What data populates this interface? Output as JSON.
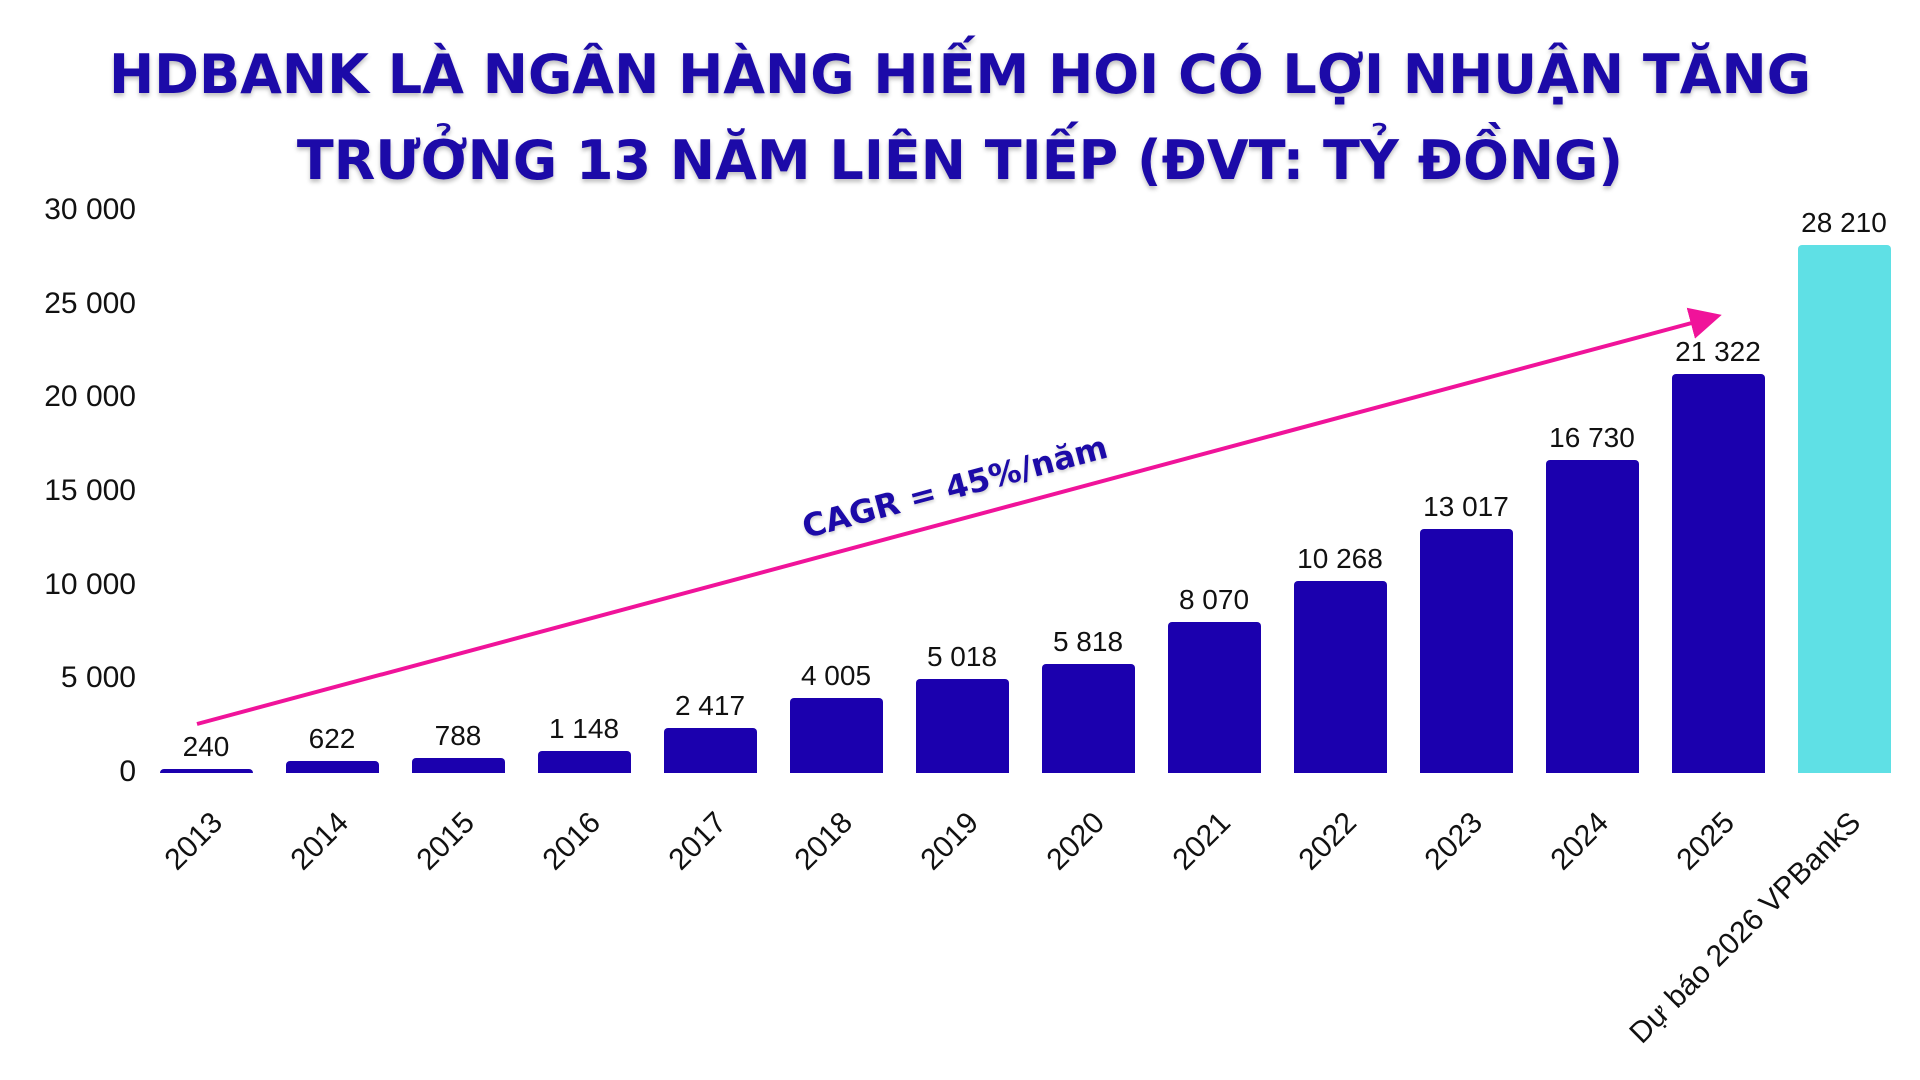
{
  "title": {
    "line1": "HDBANK LÀ NGÂN HÀNG HIẾM HOI CÓ LỢI NHUẬN TĂNG",
    "line2": "TRƯỞNG 13 NĂM LIÊN TIẾP (ĐVT: TỶ ĐỒNG)"
  },
  "colors": {
    "bar": "#1b00ae",
    "forecast_bar": "#5fe0e5",
    "arrow": "#f0139a",
    "title": "#1c0aa8"
  },
  "annotation": {
    "cagr": "CAGR = 45%/năm"
  },
  "chart_data": {
    "type": "bar",
    "title": "HDBANK LÀ NGÂN HÀNG HIẾM HOI CÓ LỢI NHUẬN TĂNG TRƯỞNG 13 NĂM LIÊN TIẾP (ĐVT: TỶ ĐỒNG)",
    "xlabel": "",
    "ylabel": "",
    "ylim": [
      0,
      30000
    ],
    "yticks": [
      "0",
      "5 000",
      "10 000",
      "15 000",
      "20 000",
      "25 000",
      "30 000"
    ],
    "grid": false,
    "legend": null,
    "categories": [
      "2013",
      "2014",
      "2015",
      "2016",
      "2017",
      "2018",
      "2019",
      "2020",
      "2021",
      "2022",
      "2023",
      "2024",
      "2025",
      "Dự báo 2026 VPBankS"
    ],
    "values": [
      240,
      622,
      788,
      1148,
      2417,
      4005,
      5018,
      5818,
      8070,
      10268,
      13017,
      16730,
      21322,
      28210
    ],
    "value_labels": [
      "240",
      "622",
      "788",
      "1 148",
      "2 417",
      "4 005",
      "5 018",
      "5 818",
      "8 070",
      "10 268",
      "13 017",
      "16 730",
      "21 322",
      "28 210"
    ],
    "annotations": [
      {
        "text": "CAGR = 45%/năm",
        "type": "arrow",
        "from": "2013",
        "to": "2025"
      }
    ],
    "highlight": {
      "category": "Dự báo 2026 VPBankS",
      "color": "#5fe0e5"
    }
  }
}
